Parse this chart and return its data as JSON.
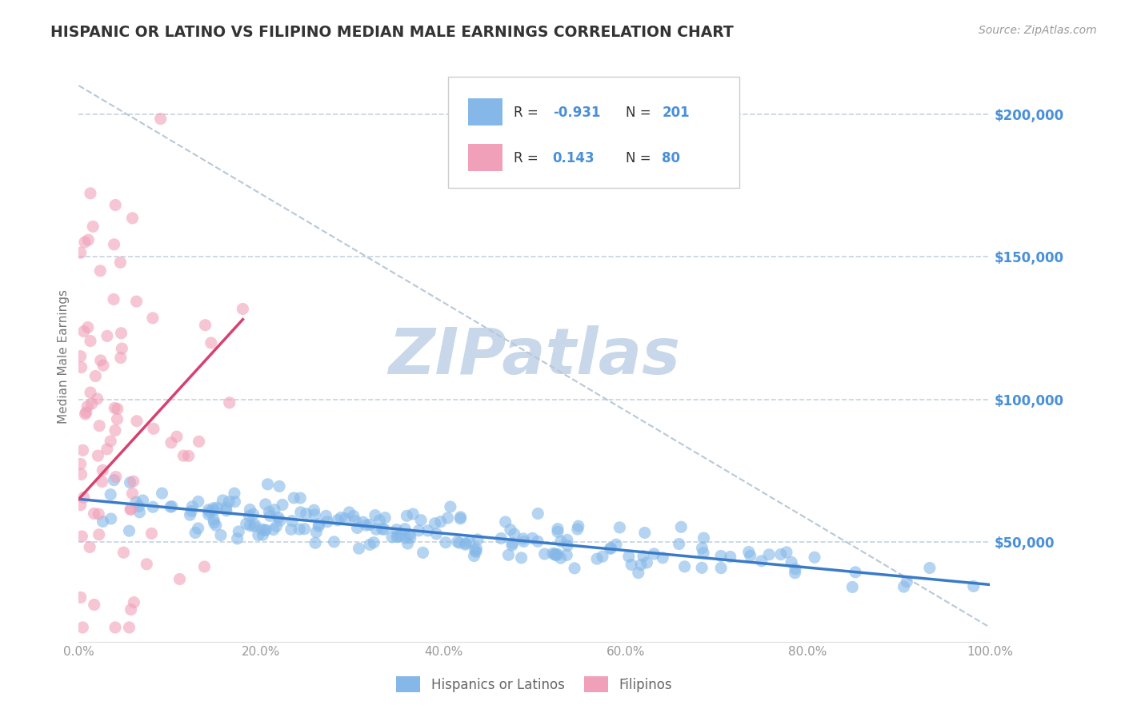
{
  "title": "HISPANIC OR LATINO VS FILIPINO MEDIAN MALE EARNINGS CORRELATION CHART",
  "source_text": "Source: ZipAtlas.com",
  "ylabel": "Median Male Earnings",
  "ytick_labels": [
    "$50,000",
    "$100,000",
    "$150,000",
    "$200,000"
  ],
  "ytick_values": [
    50000,
    100000,
    150000,
    200000
  ],
  "xtick_labels": [
    "0.0%",
    "20.0%",
    "40.0%",
    "60.0%",
    "80.0%",
    "100.0%"
  ],
  "xtick_values": [
    0,
    20,
    40,
    60,
    80,
    100
  ],
  "xlim": [
    0,
    100
  ],
  "ylim": [
    15000,
    215000
  ],
  "blue_R": -0.931,
  "blue_N": 201,
  "pink_R": 0.143,
  "pink_N": 80,
  "blue_color": "#85B8E8",
  "pink_color": "#F0A0B8",
  "blue_line_color": "#3A7BC8",
  "pink_line_color": "#D84070",
  "title_color": "#333333",
  "ytick_color": "#4A90D9",
  "legend_R_color": "#4A90D9",
  "watermark_color": "#C8D8EA",
  "dashed_line_color": "#B8C8D8",
  "background_color": "#FFFFFF",
  "legend_text_color": "#333333",
  "bottom_legend_color": "#666666",
  "seed": 42
}
